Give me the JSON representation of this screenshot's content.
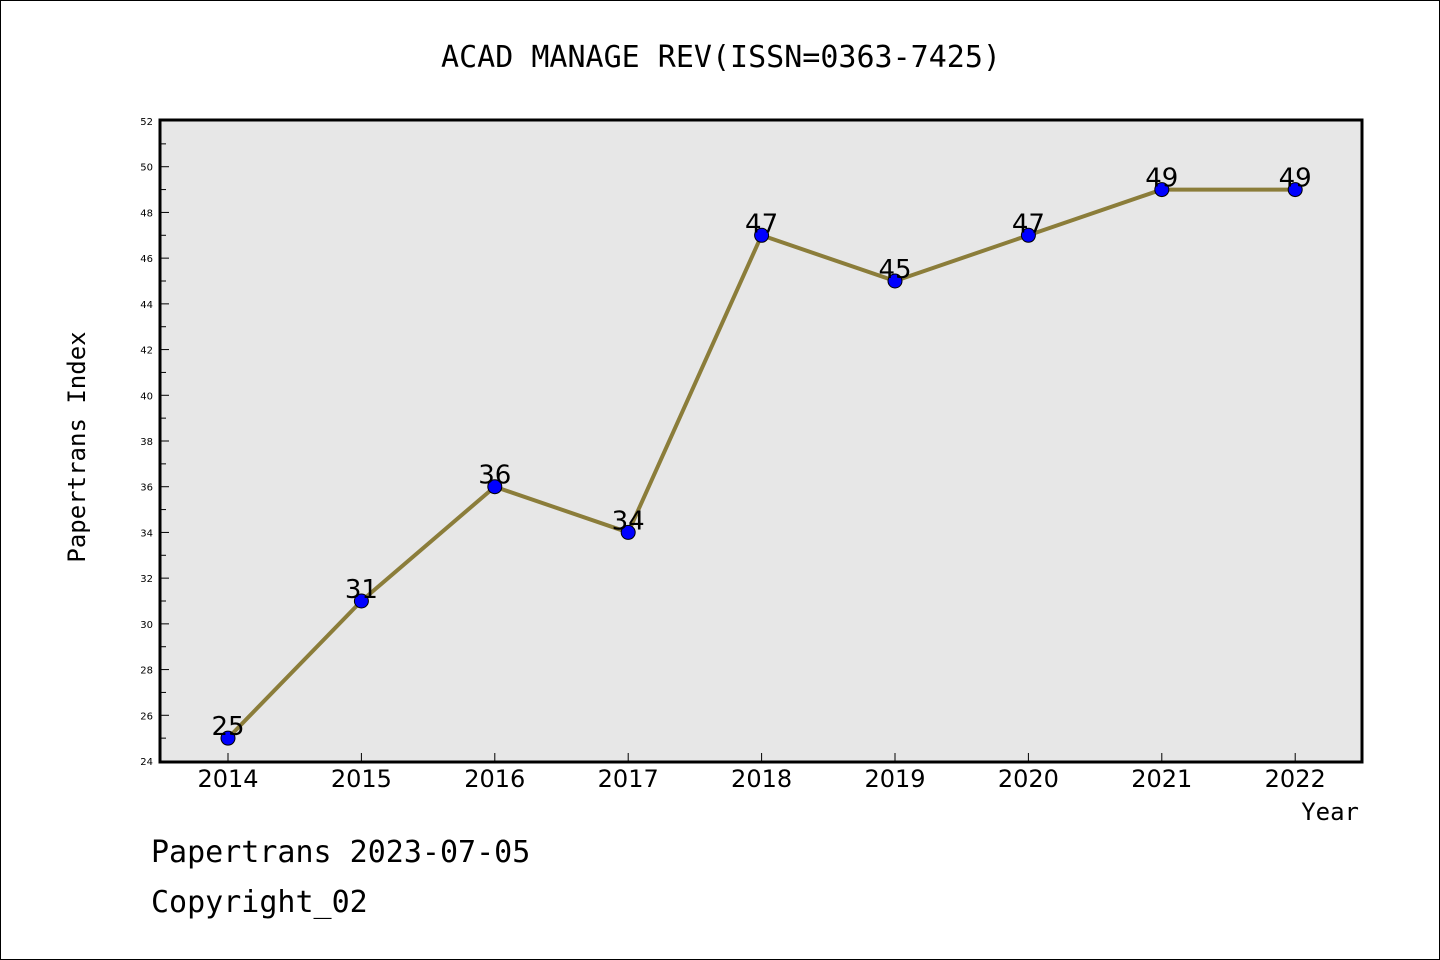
{
  "chart_data": {
    "type": "line",
    "title": "ACAD MANAGE REV(ISSN=0363-7425)",
    "xlabel": "Year",
    "ylabel": "Papertrans Index",
    "categories": [
      "2014",
      "2015",
      "2016",
      "2017",
      "2018",
      "2019",
      "2020",
      "2021",
      "2022"
    ],
    "series": [
      {
        "values": [
          25,
          31,
          36,
          34,
          47,
          45,
          47,
          49,
          49
        ]
      }
    ],
    "ylim": [
      24,
      52
    ],
    "yticks": [
      24,
      26,
      28,
      30,
      32,
      34,
      36,
      38,
      40,
      42,
      44,
      46,
      48,
      50,
      52
    ],
    "data_labels": true,
    "grid": false,
    "colors": {
      "line": "#8b7d3a",
      "marker": "#0000ff",
      "plot_background": "#e7e7e7"
    }
  },
  "footer": {
    "line1": "Papertrans 2023-07-05",
    "line2": "Copyright_02"
  }
}
